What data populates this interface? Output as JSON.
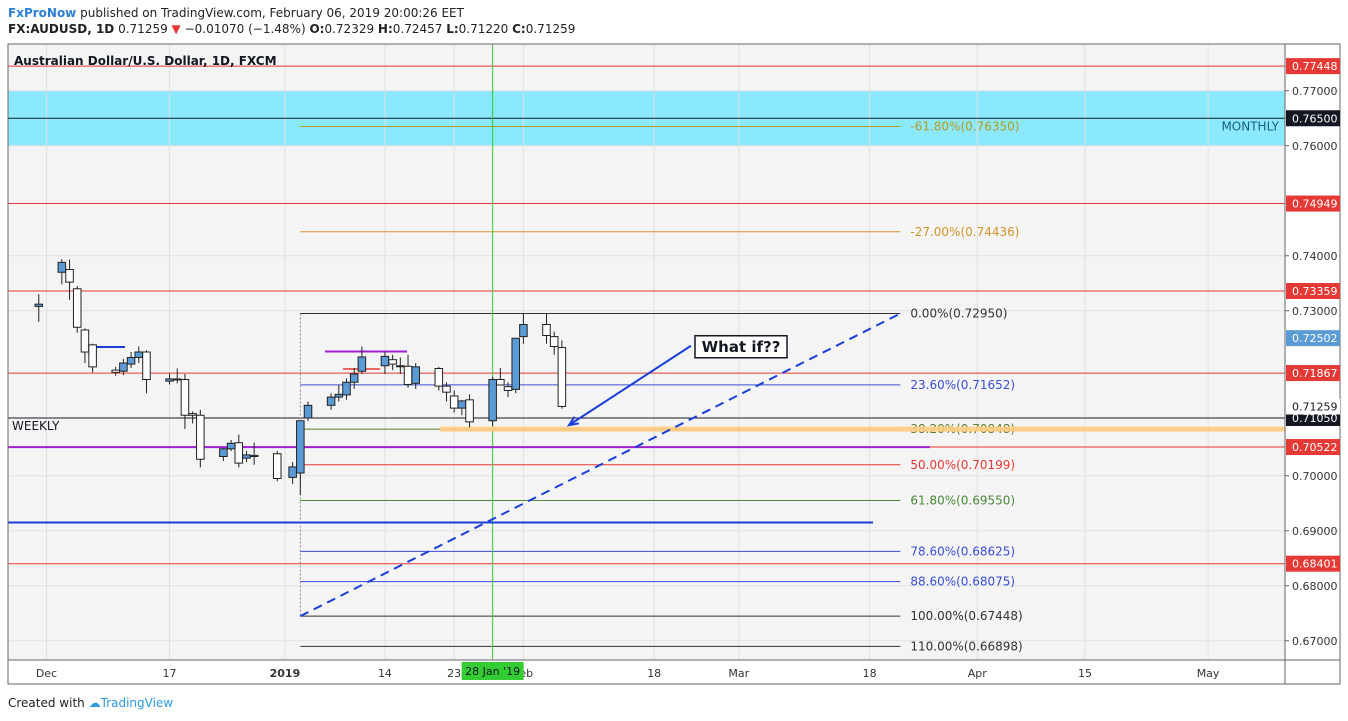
{
  "header": {
    "publisher": "FxProNow",
    "published_text": "published on TradingView.com, February 06, 2019 20:00:26 EET",
    "symbol": "FX:AUDUSD, 1D",
    "last": "0.71259",
    "change": "−0.01070 (−1.48%)",
    "o_label": "O:",
    "o_value": "0.72329",
    "h_label": "H:",
    "h_value": "0.72457",
    "l_label": "L:",
    "l_value": "0.71220",
    "c_label": "C:",
    "c_value": "0.71259"
  },
  "footer": {
    "created_with": "Created with",
    "tv_name": "TradingView"
  },
  "chart_data": {
    "type": "candlestick",
    "title": "Australian Dollar/U.S. Dollar, 1D, FXCM",
    "y_range": [
      0.6665,
      0.7785
    ],
    "y_ticks": [
      "0.77000",
      "0.76000",
      "0.74000",
      "0.73000",
      "0.70000",
      "0.69000",
      "0.68000",
      "0.67000"
    ],
    "x_ticks": [
      {
        "label": "Dec",
        "date": "2018-12-01"
      },
      {
        "label": "17",
        "date": "2018-12-17"
      },
      {
        "label": "2019",
        "date": "2019-01-01"
      },
      {
        "label": "14",
        "date": "2019-01-14"
      },
      {
        "label": "23",
        "date": "2019-01-23"
      },
      {
        "label": "Feb",
        "date": "2019-02-01"
      },
      {
        "label": "18",
        "date": "2019-02-18"
      },
      {
        "label": "Mar",
        "date": "2019-03-01"
      },
      {
        "label": "18",
        "date": "2019-03-18"
      },
      {
        "label": "Apr",
        "date": "2019-04-01"
      },
      {
        "label": "15",
        "date": "2019-04-15"
      },
      {
        "label": "May",
        "date": "2019-05-01"
      }
    ],
    "crosshair_label": "28 Jan '19",
    "candles": [
      {
        "date": "2018-11-30",
        "o": 0.7308,
        "h": 0.733,
        "l": 0.728,
        "c": 0.7312
      },
      {
        "date": "2018-12-03",
        "o": 0.737,
        "h": 0.7394,
        "l": 0.7348,
        "c": 0.7388
      },
      {
        "date": "2018-12-04",
        "o": 0.7375,
        "h": 0.7393,
        "l": 0.732,
        "c": 0.7352
      },
      {
        "date": "2018-12-05",
        "o": 0.734,
        "h": 0.7345,
        "l": 0.726,
        "c": 0.727
      },
      {
        "date": "2018-12-06",
        "o": 0.7265,
        "h": 0.7268,
        "l": 0.7205,
        "c": 0.7225
      },
      {
        "date": "2018-12-07",
        "o": 0.7238,
        "h": 0.724,
        "l": 0.7188,
        "c": 0.7198
      },
      {
        "date": "2018-12-10",
        "o": 0.7192,
        "h": 0.7198,
        "l": 0.7182,
        "c": 0.7188
      },
      {
        "date": "2018-12-11",
        "o": 0.719,
        "h": 0.7212,
        "l": 0.7183,
        "c": 0.7205
      },
      {
        "date": "2018-12-12",
        "o": 0.7203,
        "h": 0.7225,
        "l": 0.7196,
        "c": 0.7215
      },
      {
        "date": "2018-12-13",
        "o": 0.7215,
        "h": 0.7235,
        "l": 0.7205,
        "c": 0.7225
      },
      {
        "date": "2018-12-14",
        "o": 0.7225,
        "h": 0.7228,
        "l": 0.715,
        "c": 0.7175
      },
      {
        "date": "2018-12-17",
        "o": 0.7172,
        "h": 0.7186,
        "l": 0.7166,
        "c": 0.7176
      },
      {
        "date": "2018-12-18",
        "o": 0.7175,
        "h": 0.7195,
        "l": 0.7168,
        "c": 0.7176
      },
      {
        "date": "2018-12-19",
        "o": 0.7175,
        "h": 0.7185,
        "l": 0.7085,
        "c": 0.711
      },
      {
        "date": "2018-12-20",
        "o": 0.7113,
        "h": 0.7117,
        "l": 0.7095,
        "c": 0.711
      },
      {
        "date": "2018-12-21",
        "o": 0.711,
        "h": 0.712,
        "l": 0.7015,
        "c": 0.703
      },
      {
        "date": "2018-12-24",
        "o": 0.7035,
        "h": 0.705,
        "l": 0.7027,
        "c": 0.7049
      },
      {
        "date": "2018-12-25",
        "o": 0.7049,
        "h": 0.7065,
        "l": 0.7045,
        "c": 0.7059
      },
      {
        "date": "2018-12-26",
        "o": 0.706,
        "h": 0.7075,
        "l": 0.7015,
        "c": 0.7023
      },
      {
        "date": "2018-12-27",
        "o": 0.7032,
        "h": 0.7045,
        "l": 0.7025,
        "c": 0.7038
      },
      {
        "date": "2018-12-28",
        "o": 0.7035,
        "h": 0.706,
        "l": 0.702,
        "c": 0.7037
      },
      {
        "date": "2018-12-31",
        "o": 0.704,
        "h": 0.7045,
        "l": 0.699,
        "c": 0.6995
      },
      {
        "date": "2019-01-02",
        "o": 0.6997,
        "h": 0.7025,
        "l": 0.6985,
        "c": 0.7016
      },
      {
        "date": "2019-01-03",
        "o": 0.7005,
        "h": 0.71,
        "l": 0.6965,
        "c": 0.71
      },
      {
        "date": "2019-01-04",
        "o": 0.7105,
        "h": 0.7135,
        "l": 0.71,
        "c": 0.7128
      },
      {
        "date": "2019-01-07",
        "o": 0.7128,
        "h": 0.715,
        "l": 0.712,
        "c": 0.7143
      },
      {
        "date": "2019-01-08",
        "o": 0.7143,
        "h": 0.7165,
        "l": 0.7135,
        "c": 0.7148
      },
      {
        "date": "2019-01-09",
        "o": 0.7147,
        "h": 0.7177,
        "l": 0.7138,
        "c": 0.717
      },
      {
        "date": "2019-01-10",
        "o": 0.717,
        "h": 0.7196,
        "l": 0.7158,
        "c": 0.7185
      },
      {
        "date": "2019-01-11",
        "o": 0.719,
        "h": 0.7235,
        "l": 0.7185,
        "c": 0.7216
      },
      {
        "date": "2019-01-14",
        "o": 0.72,
        "h": 0.7225,
        "l": 0.7185,
        "c": 0.7217
      },
      {
        "date": "2019-01-15",
        "o": 0.7211,
        "h": 0.722,
        "l": 0.7192,
        "c": 0.7203
      },
      {
        "date": "2019-01-16",
        "o": 0.72,
        "h": 0.7215,
        "l": 0.7185,
        "c": 0.72
      },
      {
        "date": "2019-01-17",
        "o": 0.7199,
        "h": 0.722,
        "l": 0.716,
        "c": 0.7166
      },
      {
        "date": "2019-01-18",
        "o": 0.7168,
        "h": 0.7205,
        "l": 0.7158,
        "c": 0.7198
      },
      {
        "date": "2019-01-21",
        "o": 0.7195,
        "h": 0.7198,
        "l": 0.7155,
        "c": 0.7163
      },
      {
        "date": "2019-01-22",
        "o": 0.7163,
        "h": 0.717,
        "l": 0.7135,
        "c": 0.7152
      },
      {
        "date": "2019-01-23",
        "o": 0.7145,
        "h": 0.7155,
        "l": 0.7115,
        "c": 0.7123
      },
      {
        "date": "2019-01-24",
        "o": 0.7123,
        "h": 0.7138,
        "l": 0.711,
        "c": 0.7136
      },
      {
        "date": "2019-01-25",
        "o": 0.7138,
        "h": 0.7148,
        "l": 0.7088,
        "c": 0.7098
      },
      {
        "date": "2019-01-28",
        "o": 0.71,
        "h": 0.718,
        "l": 0.709,
        "c": 0.7175
      },
      {
        "date": "2019-01-29",
        "o": 0.7175,
        "h": 0.7196,
        "l": 0.7165,
        "c": 0.7165
      },
      {
        "date": "2019-01-30",
        "o": 0.7162,
        "h": 0.717,
        "l": 0.7143,
        "c": 0.7155
      },
      {
        "date": "2019-01-31",
        "o": 0.7157,
        "h": 0.725,
        "l": 0.715,
        "c": 0.725
      },
      {
        "date": "2019-02-01",
        "o": 0.7253,
        "h": 0.7296,
        "l": 0.724,
        "c": 0.7275
      },
      {
        "date": "2019-02-04",
        "o": 0.7275,
        "h": 0.7295,
        "l": 0.724,
        "c": 0.7255
      },
      {
        "date": "2019-02-05",
        "o": 0.7253,
        "h": 0.7262,
        "l": 0.722,
        "c": 0.7235
      },
      {
        "date": "2019-02-06",
        "o": 0.7233,
        "h": 0.7246,
        "l": 0.7122,
        "c": 0.7126
      }
    ],
    "horizontal_lines": [
      {
        "y": 0.77448,
        "color": "#e53935",
        "label": "0.77448",
        "label_color": "#ffffff",
        "label_bg": "#e53935"
      },
      {
        "y": 0.765,
        "color": "#131722",
        "label": "0.76500",
        "label_color": "#ffffff",
        "label_bg": "#131722"
      },
      {
        "y": 0.74949,
        "color": "#e53935",
        "label": "0.74949",
        "label_color": "#ffffff",
        "label_bg": "#e53935"
      },
      {
        "y": 0.73359,
        "color": "#e53935",
        "label": "0.73359",
        "label_color": "#ffffff",
        "label_bg": "#e53935"
      },
      {
        "y": 0.71867,
        "color": "#e53935",
        "label": "0.71867",
        "label_color": "#ffffff",
        "label_bg": "#e53935"
      },
      {
        "y": 0.7105,
        "color": "#131722",
        "label": "0.71050",
        "label_color": "#ffffff",
        "label_bg": "#131722"
      },
      {
        "y": 0.70522,
        "color": "#e53935",
        "label": "0.70522",
        "label_color": "#ffffff",
        "label_bg": "#e53935"
      },
      {
        "y": 0.68401,
        "color": "#e53935",
        "label": "0.68401",
        "label_color": "#ffffff",
        "label_bg": "#e53935"
      }
    ],
    "price_labels": [
      {
        "y": 0.72502,
        "label": "0.72502",
        "label_color": "#ffffff",
        "label_bg": "#5b9bd5"
      },
      {
        "y": 0.71259,
        "label": "0.71259",
        "label_color": "#131722",
        "label_bg": "#ffffff"
      }
    ],
    "zone": {
      "y_top": 0.77,
      "y_bottom": 0.76,
      "color": "#80e8ff",
      "label": "MONTHLY"
    },
    "weekly_label": "WEEKLY",
    "fib": {
      "start_date": "2019-01-03",
      "end_date": "2019-03-22",
      "levels": [
        {
          "label": "-61.80%(0.76350)",
          "y": 0.7635,
          "color": "#b59a1e"
        },
        {
          "label": "-27.00%(0.74436)",
          "y": 0.74436,
          "color": "#d4952a"
        },
        {
          "label": "0.00%(0.72950)",
          "y": 0.7295,
          "color": "#333333"
        },
        {
          "label": "23.60%(0.71652)",
          "y": 0.71652,
          "color": "#3a4ed1"
        },
        {
          "label": "38.20%(0.70848)",
          "y": 0.70848,
          "color": "#5a7d2a"
        },
        {
          "label": "50.00%(0.70199)",
          "y": 0.70199,
          "color": "#e53935"
        },
        {
          "label": "61.80%(0.69550)",
          "y": 0.6955,
          "color": "#4a8a3a"
        },
        {
          "label": "78.60%(0.68625)",
          "y": 0.68625,
          "color": "#3a4ed1"
        },
        {
          "label": "88.60%(0.68075)",
          "y": 0.68075,
          "color": "#3a4ed1"
        },
        {
          "label": "100.00%(0.67448)",
          "y": 0.67448,
          "color": "#333333"
        },
        {
          "label": "110.00%(0.66898)",
          "y": 0.66898,
          "color": "#333333"
        }
      ]
    },
    "annotation": {
      "text": "What if??"
    },
    "trendline": {
      "from": {
        "date": "2019-01-03",
        "y": 0.67448
      },
      "to": {
        "date": "2019-03-22",
        "y": 0.7295
      },
      "color": "#1a3fd8",
      "style": "dashed"
    }
  }
}
